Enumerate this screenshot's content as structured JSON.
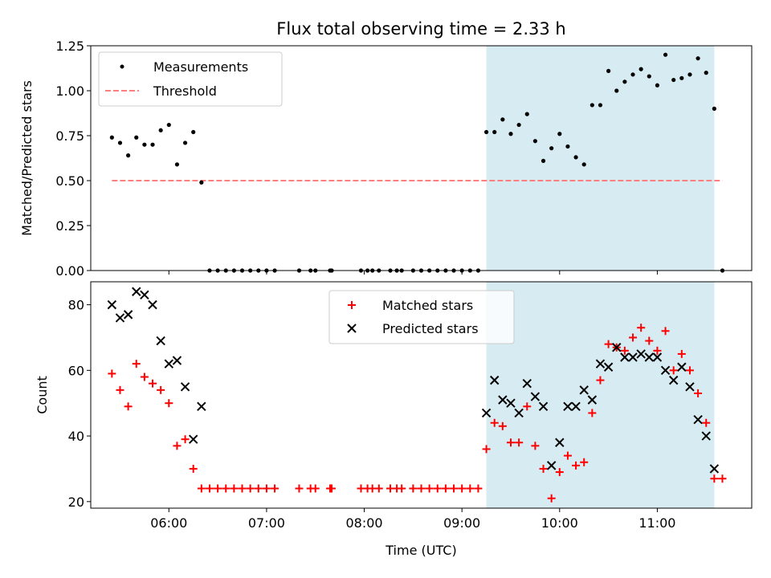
{
  "chart_data": [
    {
      "type": "scatter",
      "title": "Flux total observing time = 2.33 h",
      "ylabel": "Matched/Predicted stars",
      "xlabel": "",
      "xlim": [
        "05:12",
        "11:58"
      ],
      "ylim": [
        0,
        1.25
      ],
      "yticks": [
        "0.00",
        "0.25",
        "0.50",
        "0.75",
        "1.00",
        "1.25"
      ],
      "legend_position": "upper-left",
      "shaded_interval": {
        "start": "09:15",
        "end": "11:35",
        "color": "#add8e6"
      },
      "series": [
        {
          "name": "Measurements",
          "marker": "dot",
          "color": "#000000",
          "points": [
            [
              "05:25",
              0.74
            ],
            [
              "05:30",
              0.71
            ],
            [
              "05:35",
              0.64
            ],
            [
              "05:40",
              0.74
            ],
            [
              "05:45",
              0.7
            ],
            [
              "05:50",
              0.7
            ],
            [
              "05:55",
              0.78
            ],
            [
              "06:00",
              0.81
            ],
            [
              "06:05",
              0.59
            ],
            [
              "06:10",
              0.71
            ],
            [
              "06:15",
              0.77
            ],
            [
              "06:20",
              0.49
            ],
            [
              "06:25",
              0
            ],
            [
              "06:30",
              0
            ],
            [
              "06:35",
              0
            ],
            [
              "06:40",
              0
            ],
            [
              "06:45",
              0
            ],
            [
              "06:50",
              0
            ],
            [
              "06:55",
              0
            ],
            [
              "07:00",
              0
            ],
            [
              "07:05",
              0
            ],
            [
              "07:20",
              0
            ],
            [
              "07:27",
              0
            ],
            [
              "07:30",
              0
            ],
            [
              "07:39",
              0
            ],
            [
              "07:40",
              0
            ],
            [
              "07:58",
              0
            ],
            [
              "08:02",
              0
            ],
            [
              "08:05",
              0
            ],
            [
              "08:09",
              0
            ],
            [
              "08:16",
              0
            ],
            [
              "08:20",
              0
            ],
            [
              "08:23",
              0
            ],
            [
              "08:30",
              0
            ],
            [
              "08:35",
              0
            ],
            [
              "08:40",
              0
            ],
            [
              "08:45",
              0
            ],
            [
              "08:50",
              0
            ],
            [
              "08:55",
              0
            ],
            [
              "09:00",
              0
            ],
            [
              "09:05",
              0
            ],
            [
              "09:10",
              0
            ],
            [
              "09:15",
              0.77
            ],
            [
              "09:20",
              0.77
            ],
            [
              "09:25",
              0.84
            ],
            [
              "09:30",
              0.76
            ],
            [
              "09:35",
              0.81
            ],
            [
              "09:40",
              0.87
            ],
            [
              "09:45",
              0.72
            ],
            [
              "09:50",
              0.61
            ],
            [
              "09:55",
              0.68
            ],
            [
              "10:00",
              0.76
            ],
            [
              "10:05",
              0.69
            ],
            [
              "10:10",
              0.63
            ],
            [
              "10:15",
              0.59
            ],
            [
              "10:20",
              0.92
            ],
            [
              "10:25",
              0.92
            ],
            [
              "10:30",
              1.11
            ],
            [
              "10:35",
              1.0
            ],
            [
              "10:40",
              1.05
            ],
            [
              "10:45",
              1.09
            ],
            [
              "10:50",
              1.12
            ],
            [
              "10:55",
              1.08
            ],
            [
              "11:00",
              1.03
            ],
            [
              "11:05",
              1.2
            ],
            [
              "11:10",
              1.06
            ],
            [
              "11:15",
              1.07
            ],
            [
              "11:20",
              1.09
            ],
            [
              "11:25",
              1.18
            ],
            [
              "11:30",
              1.1
            ],
            [
              "11:35",
              0.9
            ],
            [
              "11:40",
              0
            ]
          ]
        },
        {
          "name": "Threshold",
          "line_style": "dashed",
          "color": "#ff7f7f",
          "points": [
            [
              "05:25",
              0.5
            ],
            [
              "11:40",
              0.5
            ]
          ]
        }
      ]
    },
    {
      "type": "scatter",
      "title": "",
      "xlabel": "Time (UTC)",
      "ylabel": "Count",
      "xlim": [
        "05:12",
        "11:58"
      ],
      "ylim": [
        18,
        87
      ],
      "xticks": [
        "06:00",
        "07:00",
        "08:00",
        "09:00",
        "10:00",
        "11:00"
      ],
      "yticks": [
        "20",
        "40",
        "60",
        "80"
      ],
      "legend_position": "upper-center",
      "shaded_interval": {
        "start": "09:15",
        "end": "11:35",
        "color": "#add8e6"
      },
      "series": [
        {
          "name": "Matched stars",
          "marker": "plus",
          "color": "#ff0000",
          "points": [
            [
              "05:25",
              59
            ],
            [
              "05:30",
              54
            ],
            [
              "05:35",
              49
            ],
            [
              "05:40",
              62
            ],
            [
              "05:45",
              58
            ],
            [
              "05:50",
              56
            ],
            [
              "05:55",
              54
            ],
            [
              "06:00",
              50
            ],
            [
              "06:05",
              37
            ],
            [
              "06:10",
              39
            ],
            [
              "06:15",
              30
            ],
            [
              "06:20",
              24
            ],
            [
              "06:25",
              24
            ],
            [
              "06:30",
              24
            ],
            [
              "06:35",
              24
            ],
            [
              "06:40",
              24
            ],
            [
              "06:45",
              24
            ],
            [
              "06:50",
              24
            ],
            [
              "06:55",
              24
            ],
            [
              "07:00",
              24
            ],
            [
              "07:05",
              24
            ],
            [
              "07:20",
              24
            ],
            [
              "07:27",
              24
            ],
            [
              "07:30",
              24
            ],
            [
              "07:39",
              24
            ],
            [
              "07:40",
              24
            ],
            [
              "07:58",
              24
            ],
            [
              "08:02",
              24
            ],
            [
              "08:05",
              24
            ],
            [
              "08:09",
              24
            ],
            [
              "08:16",
              24
            ],
            [
              "08:20",
              24
            ],
            [
              "08:23",
              24
            ],
            [
              "08:30",
              24
            ],
            [
              "08:35",
              24
            ],
            [
              "08:40",
              24
            ],
            [
              "08:45",
              24
            ],
            [
              "08:50",
              24
            ],
            [
              "08:55",
              24
            ],
            [
              "09:00",
              24
            ],
            [
              "09:05",
              24
            ],
            [
              "09:10",
              24
            ],
            [
              "09:15",
              36
            ],
            [
              "09:20",
              44
            ],
            [
              "09:25",
              43
            ],
            [
              "09:30",
              38
            ],
            [
              "09:35",
              38
            ],
            [
              "09:40",
              49
            ],
            [
              "09:45",
              37
            ],
            [
              "09:50",
              30
            ],
            [
              "09:55",
              21
            ],
            [
              "10:00",
              29
            ],
            [
              "10:05",
              34
            ],
            [
              "10:10",
              31
            ],
            [
              "10:15",
              32
            ],
            [
              "10:20",
              47
            ],
            [
              "10:25",
              57
            ],
            [
              "10:30",
              68
            ],
            [
              "10:35",
              67
            ],
            [
              "10:40",
              66
            ],
            [
              "10:45",
              70
            ],
            [
              "10:50",
              73
            ],
            [
              "10:55",
              69
            ],
            [
              "11:00",
              66
            ],
            [
              "11:05",
              72
            ],
            [
              "11:10",
              60
            ],
            [
              "11:15",
              65
            ],
            [
              "11:20",
              60
            ],
            [
              "11:25",
              53
            ],
            [
              "11:30",
              44
            ],
            [
              "11:35",
              27
            ],
            [
              "11:40",
              27
            ]
          ]
        },
        {
          "name": "Predicted stars",
          "marker": "x",
          "color": "#000000",
          "points": [
            [
              "05:25",
              80
            ],
            [
              "05:30",
              76
            ],
            [
              "05:35",
              77
            ],
            [
              "05:40",
              84
            ],
            [
              "05:45",
              83
            ],
            [
              "05:50",
              80
            ],
            [
              "05:55",
              69
            ],
            [
              "06:00",
              62
            ],
            [
              "06:05",
              63
            ],
            [
              "06:10",
              55
            ],
            [
              "06:15",
              39
            ],
            [
              "06:20",
              49
            ],
            [
              "09:15",
              47
            ],
            [
              "09:20",
              57
            ],
            [
              "09:25",
              51
            ],
            [
              "09:30",
              50
            ],
            [
              "09:35",
              47
            ],
            [
              "09:40",
              56
            ],
            [
              "09:45",
              52
            ],
            [
              "09:50",
              49
            ],
            [
              "09:55",
              31
            ],
            [
              "10:00",
              38
            ],
            [
              "10:05",
              49
            ],
            [
              "10:10",
              49
            ],
            [
              "10:15",
              54
            ],
            [
              "10:20",
              51
            ],
            [
              "10:25",
              62
            ],
            [
              "10:30",
              61
            ],
            [
              "10:35",
              67
            ],
            [
              "10:40",
              64
            ],
            [
              "10:45",
              64
            ],
            [
              "10:50",
              65
            ],
            [
              "10:55",
              64
            ],
            [
              "11:00",
              64
            ],
            [
              "11:05",
              60
            ],
            [
              "11:10",
              57
            ],
            [
              "11:15",
              61
            ],
            [
              "11:20",
              55
            ],
            [
              "11:25",
              45
            ],
            [
              "11:30",
              40
            ],
            [
              "11:35",
              30
            ]
          ]
        }
      ]
    }
  ]
}
